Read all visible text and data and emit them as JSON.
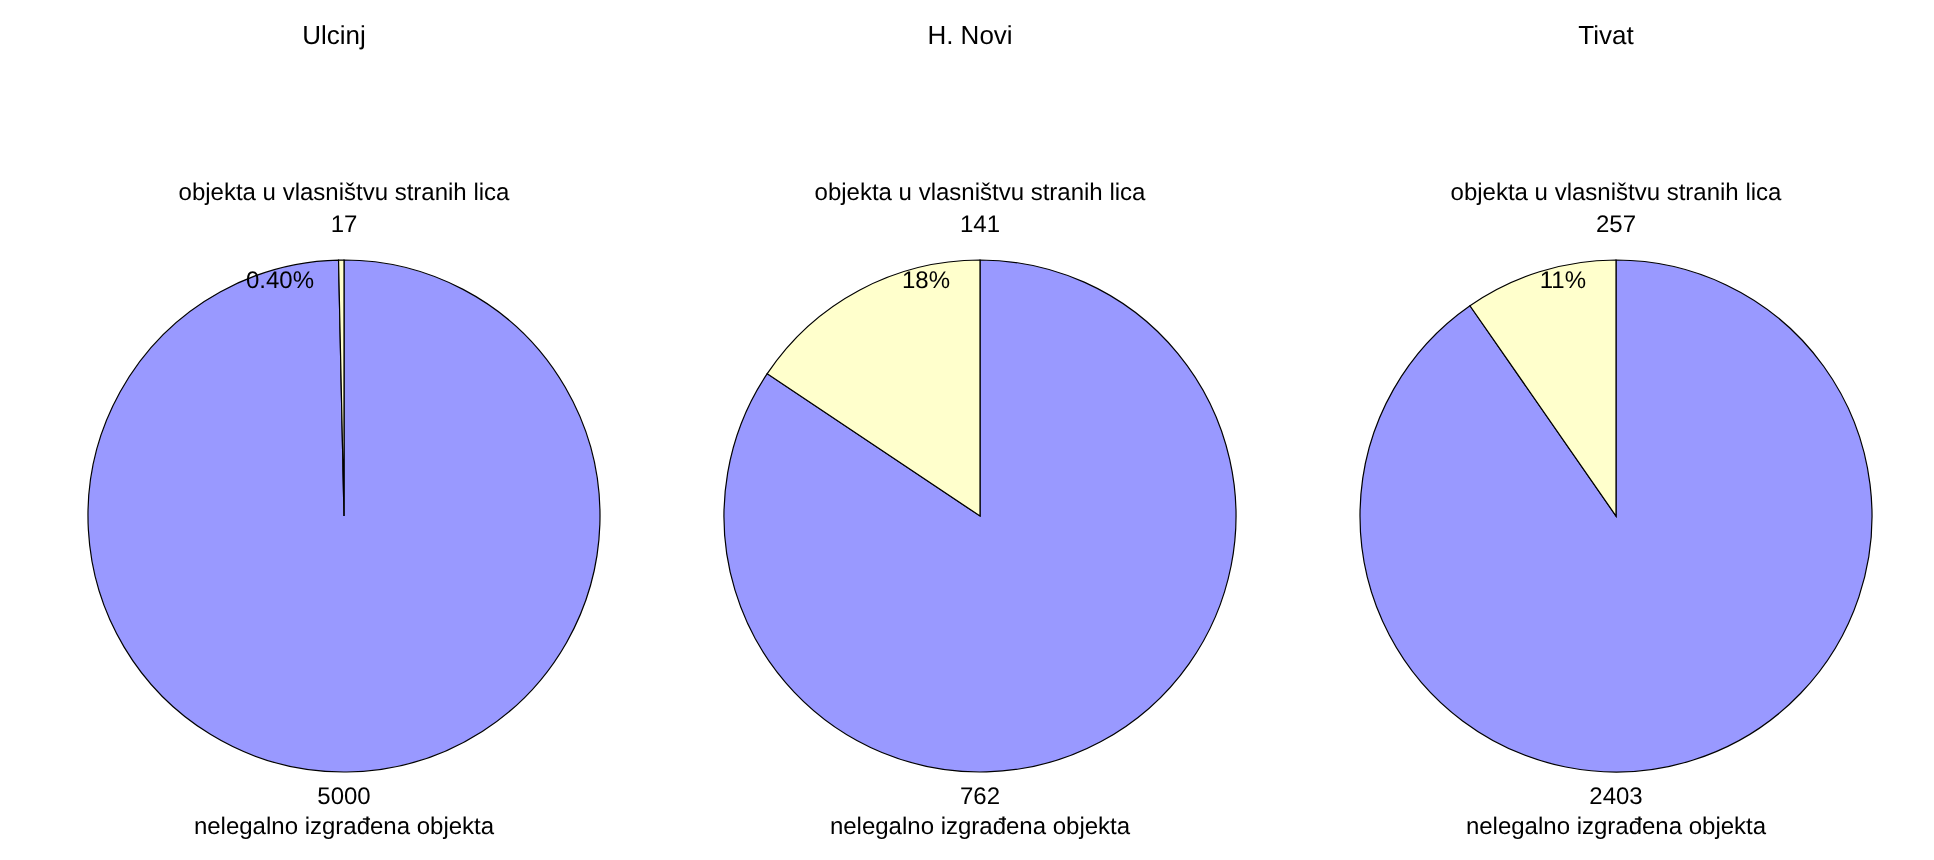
{
  "chart_data": [
    {
      "type": "pie",
      "title": "Ulcinj",
      "categories": [
        "nelegalno izgrađena objekta",
        "objekta u vlasništvu stranih lica"
      ],
      "values": [
        5000,
        17
      ],
      "colors": [
        "#9999ff",
        "#ffffcc"
      ],
      "data_labels": true,
      "annotations": [
        "0.40%"
      ]
    },
    {
      "type": "pie",
      "title": "H. Novi",
      "categories": [
        "nelegalno izgrađena objekta",
        "objekta u vlasništvu stranih lica"
      ],
      "values": [
        762,
        141
      ],
      "colors": [
        "#9999ff",
        "#ffffcc"
      ],
      "data_labels": true,
      "annotations": [
        "18%"
      ]
    },
    {
      "type": "pie",
      "title": "Tivat",
      "categories": [
        "nelegalno izgrađena objekta",
        "objekta u vlasništvu stranih lica"
      ],
      "values": [
        2403,
        257
      ],
      "colors": [
        "#9999ff",
        "#ffffcc"
      ],
      "data_labels": true,
      "annotations": [
        "11%"
      ]
    }
  ]
}
